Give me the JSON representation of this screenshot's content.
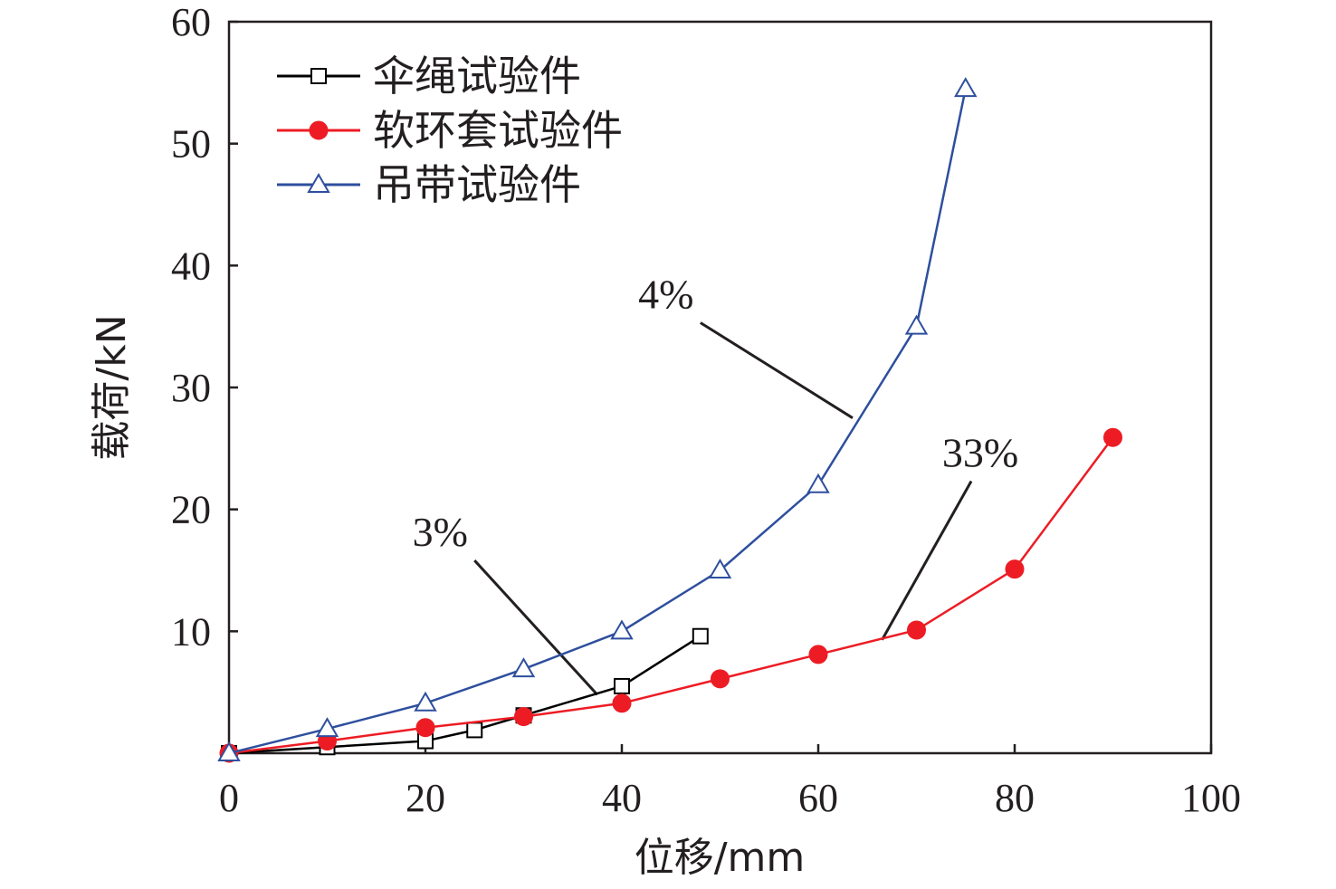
{
  "chart_data": {
    "type": "line",
    "xlabel": "位移/mm",
    "ylabel": "载荷/kN",
    "xlim": [
      0,
      100
    ],
    "ylim": [
      0,
      60
    ],
    "xticks": [
      0,
      20,
      40,
      60,
      80,
      100
    ],
    "yticks": [
      10,
      20,
      30,
      40,
      50,
      60
    ],
    "grid": false,
    "legend_position": "top-left",
    "series": [
      {
        "name": "伞绳试验件",
        "color": "#000000",
        "marker": "square-open",
        "x": [
          0,
          10,
          20,
          25,
          30,
          40,
          48
        ],
        "y": [
          0,
          0.5,
          1.0,
          1.9,
          3.1,
          5.5,
          9.6
        ]
      },
      {
        "name": "软环套试验件",
        "color": "#ed1c24",
        "marker": "circle-filled",
        "x": [
          0,
          10,
          20,
          30,
          40,
          50,
          60,
          70,
          80,
          90
        ],
        "y": [
          0,
          1.0,
          2.1,
          3.0,
          4.1,
          6.1,
          8.1,
          10.1,
          15.1,
          25.9
        ]
      },
      {
        "name": "吊带试验件",
        "color": "#2e4f9e",
        "marker": "triangle-open",
        "x": [
          0,
          10,
          20,
          30,
          40,
          50,
          60,
          70,
          75
        ],
        "y": [
          0,
          2.0,
          4.1,
          6.9,
          10.0,
          15.0,
          22.0,
          35.0,
          54.5
        ]
      }
    ],
    "annotations": [
      {
        "text": "4%",
        "label_at": [
          44.5,
          36.5
        ],
        "points_to": [
          63.5,
          27.5
        ]
      },
      {
        "text": "3%",
        "label_at": [
          21.5,
          17.0
        ],
        "points_to": [
          37.5,
          4.8
        ]
      },
      {
        "text": "33%",
        "label_at": [
          76.5,
          23.5
        ],
        "points_to": [
          66.5,
          9.3
        ]
      }
    ]
  }
}
